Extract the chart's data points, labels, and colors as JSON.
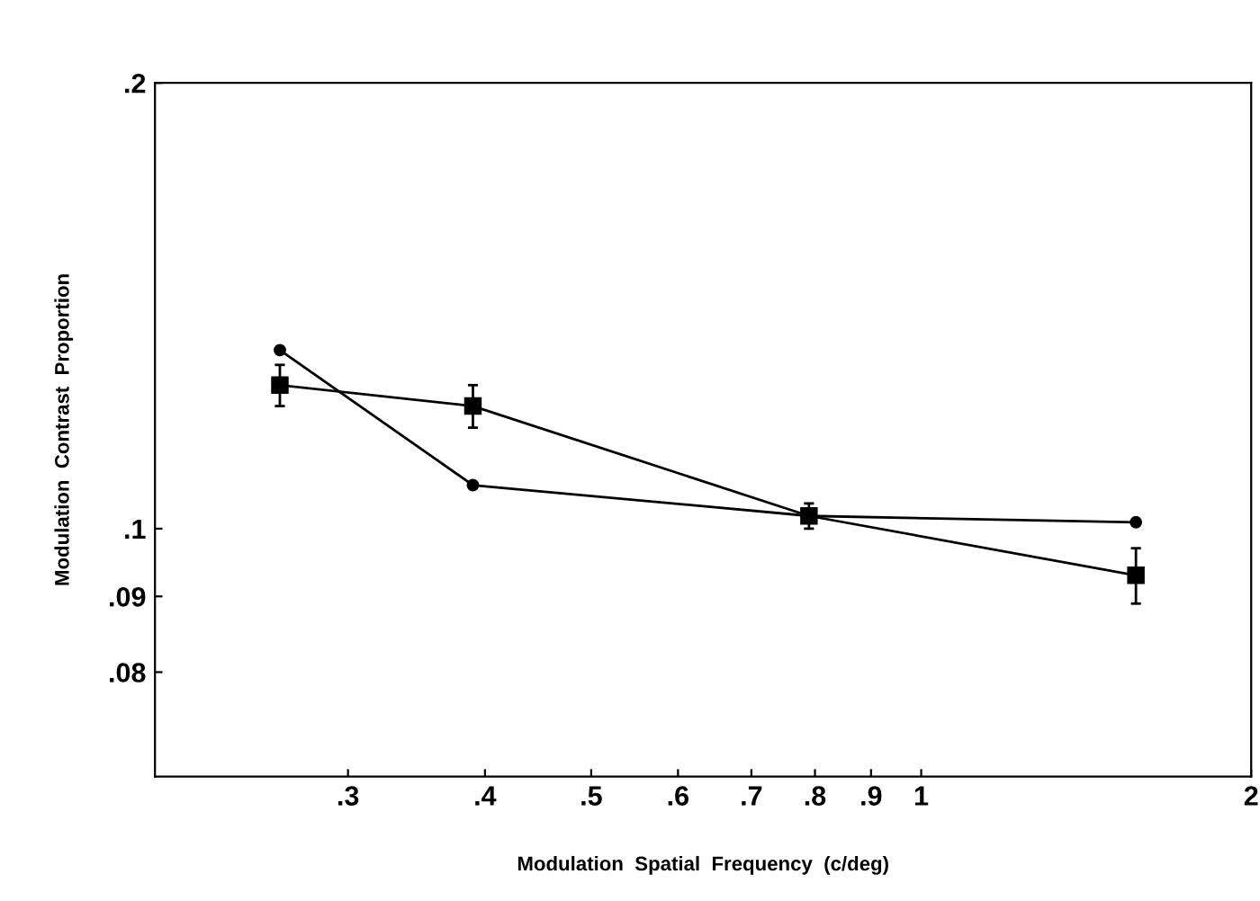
{
  "chart_data": {
    "type": "line",
    "xlabel": "Modulation  Spatial  Frequency  (c/deg)",
    "ylabel": "Modulation  Contrast  Proportion",
    "log": "xy",
    "xlim": [
      0.2,
      2
    ],
    "ylim": [
      0.068,
      0.2
    ],
    "xticks": [
      {
        "value": 0.3,
        "label": ".3"
      },
      {
        "value": 0.4,
        "label": ".4"
      },
      {
        "value": 0.5,
        "label": ".5"
      },
      {
        "value": 0.6,
        "label": ".6"
      },
      {
        "value": 0.7,
        "label": ".7"
      },
      {
        "value": 0.8,
        "label": ".8"
      },
      {
        "value": 0.9,
        "label": ".9"
      },
      1,
      2
    ],
    "yticks": [
      {
        "value": 0.08,
        "label": ".08"
      },
      {
        "value": 0.09,
        "label": ".09"
      },
      {
        "value": 0.1,
        "label": ".1"
      },
      {
        "value": 0.2,
        "label": ".2"
      }
    ],
    "grid": false,
    "x": [
      0.26,
      0.39,
      0.79,
      1.57
    ],
    "series": [
      {
        "color": "#000000",
        "marker": "circle",
        "values": [
          0.132,
          0.107,
          0.102,
          0.101
        ]
      },
      {
        "color": "#000000",
        "marker": "square",
        "values": [
          0.125,
          0.121,
          0.102,
          0.093
        ],
        "errors": [
          0.004,
          0.004,
          0.002,
          0.004
        ]
      }
    ]
  }
}
